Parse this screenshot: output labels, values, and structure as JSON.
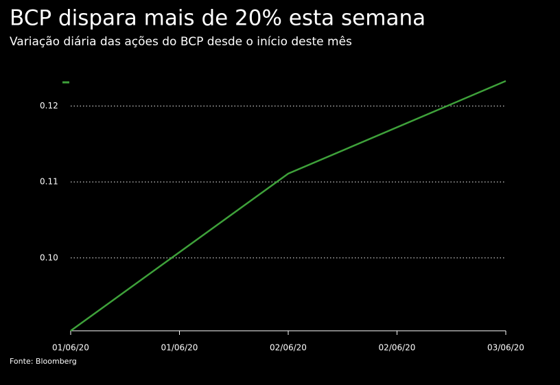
{
  "chart_data": {
    "type": "line",
    "title": "BCP dispara mais de 20% esta semana",
    "subtitle": "Variação diária das ações do BCP desde o início deste mês",
    "source": "Fonte: Bloomberg",
    "x": [
      "01/06/20",
      "02/06/20",
      "03/06/20"
    ],
    "xticks": [
      "01/06/20",
      "01/06/20",
      "02/06/20",
      "02/06/20",
      "03/06/20"
    ],
    "series": [
      {
        "color": "#3ea13a",
        "values": [
          0.0904,
          0.1111,
          0.1233
        ]
      }
    ],
    "ylim": [
      0.0904,
      0.1233
    ],
    "yticks": [
      {
        "value": 0.1,
        "label": "0.10"
      },
      0.11,
      0.12
    ],
    "grid": true
  }
}
